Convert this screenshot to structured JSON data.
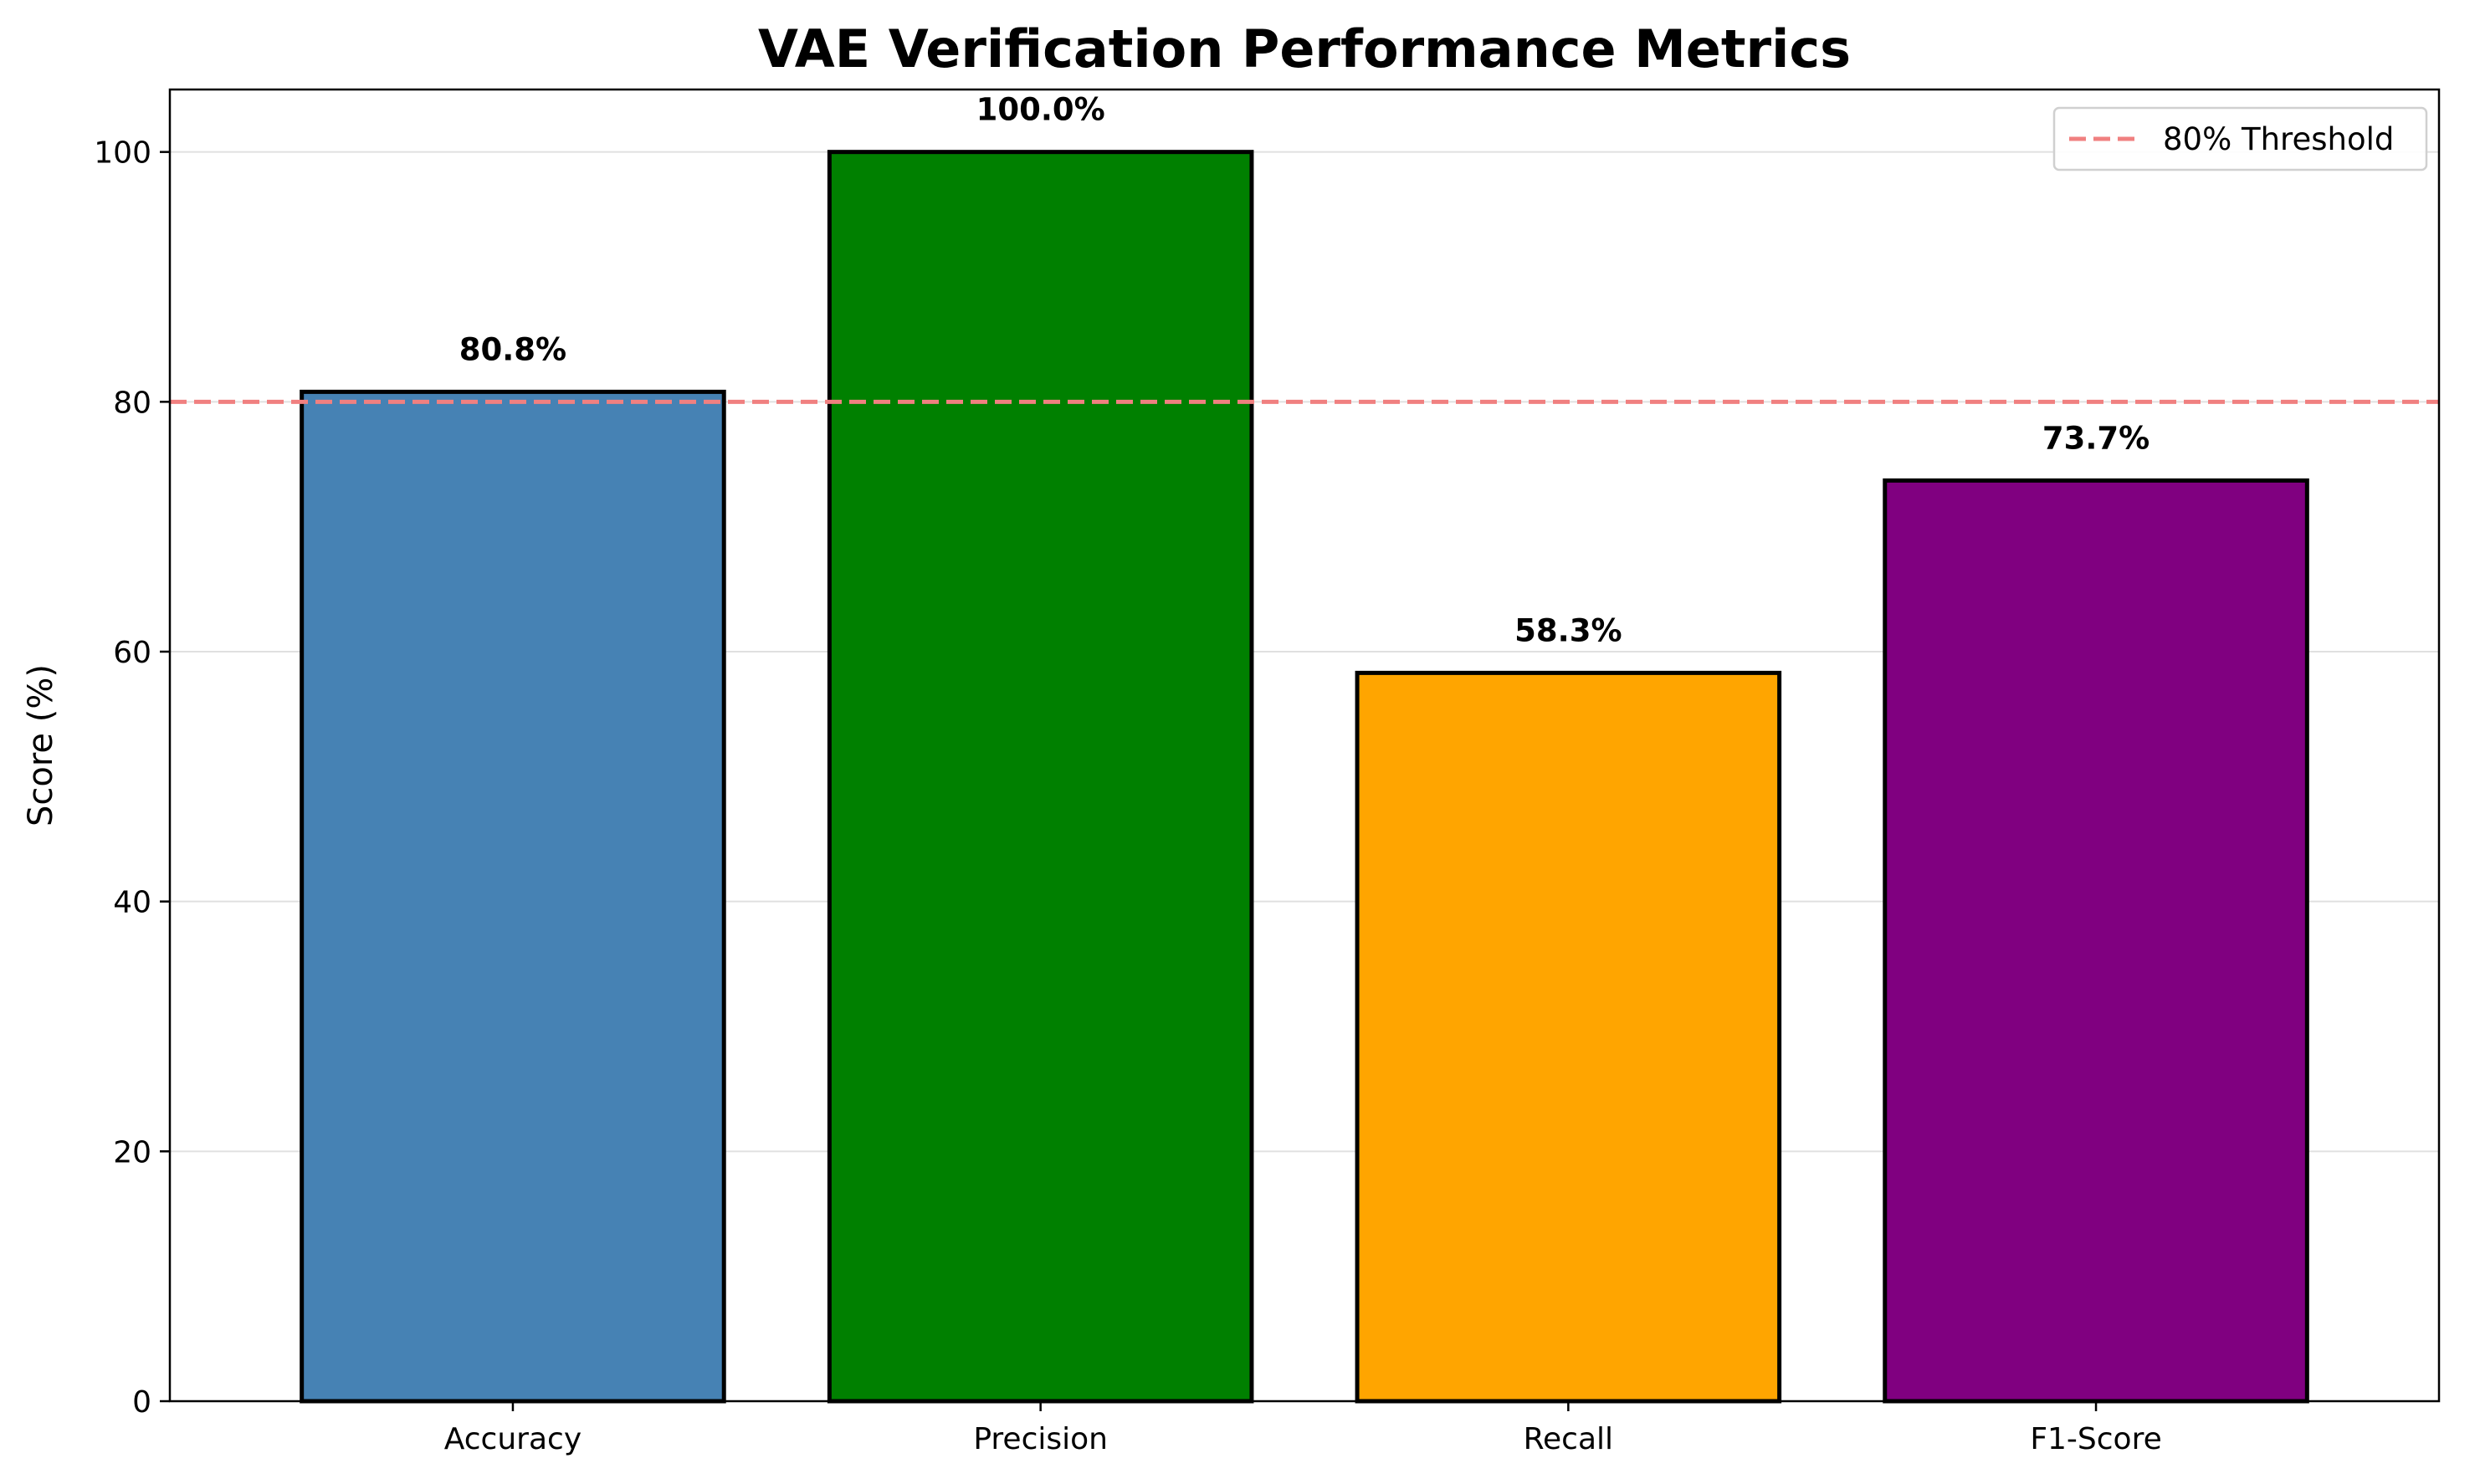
{
  "chart_data": {
    "type": "bar",
    "title": "VAE Verification Performance Metrics",
    "xlabel": "",
    "ylabel": "Score (%)",
    "categories": [
      "Accuracy",
      "Precision",
      "Recall",
      "F1-Score"
    ],
    "values": [
      80.8,
      100.0,
      58.3,
      73.7
    ],
    "value_labels": [
      "80.8%",
      "100.0%",
      "58.3%",
      "73.7%"
    ],
    "colors": [
      "#4682b4",
      "#008000",
      "#ffa500",
      "#800080"
    ],
    "edge_color": "#000000",
    "ylim": [
      0,
      105
    ],
    "yticks": [
      0,
      20,
      40,
      60,
      80,
      100
    ],
    "grid": "y",
    "threshold": {
      "value": 80,
      "label": "80% Threshold",
      "color": "#f08080",
      "style": "dashed"
    },
    "legend": {
      "placement": "top-right",
      "entries": [
        "80% Threshold"
      ]
    }
  }
}
